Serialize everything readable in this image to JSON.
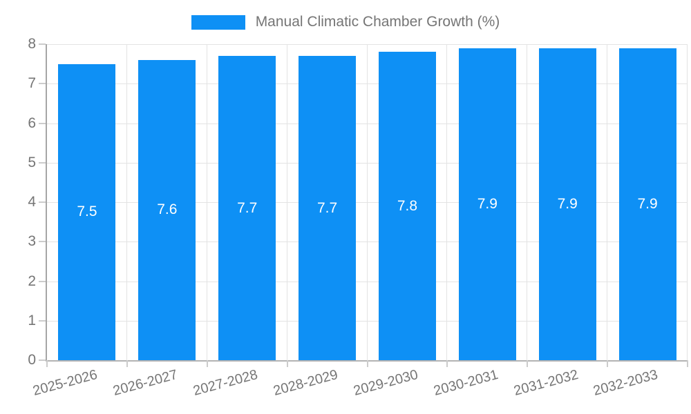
{
  "legend": {
    "label": "Manual Climatic Chamber Growth (%)"
  },
  "colors": {
    "bar": "#0e90f5",
    "grid": "#e3e3e3",
    "axis": "#a6a6a6",
    "tick": "#cccccc",
    "axis_text": "#757575",
    "value_label": "#ffffff",
    "background": "#ffffff"
  },
  "chart_data": {
    "type": "bar",
    "title": "",
    "xlabel": "",
    "ylabel": "",
    "categories": [
      "2025-2026",
      "2026-2027",
      "2027-2028",
      "2028-2029",
      "2029-2030",
      "2030-2031",
      "2031-2032",
      "2032-2033"
    ],
    "series": [
      {
        "name": "Manual Climatic Chamber Growth (%)",
        "values": [
          7.5,
          7.6,
          7.7,
          7.7,
          7.8,
          7.9,
          7.9,
          7.9
        ],
        "color": "#0e90f5"
      }
    ],
    "value_labels": [
      "7.5",
      "7.6",
      "7.7",
      "7.7",
      "7.8",
      "7.9",
      "7.9",
      "7.9"
    ],
    "ytick_labels": [
      "0",
      "1",
      "2",
      "3",
      "4",
      "5",
      "6",
      "7",
      "8"
    ],
    "yticks": [
      0,
      1,
      2,
      3,
      4,
      5,
      6,
      7,
      8
    ],
    "ylim": [
      0,
      8
    ],
    "grid": true,
    "legend_position": "top",
    "xtick_rotation_deg": -15
  }
}
